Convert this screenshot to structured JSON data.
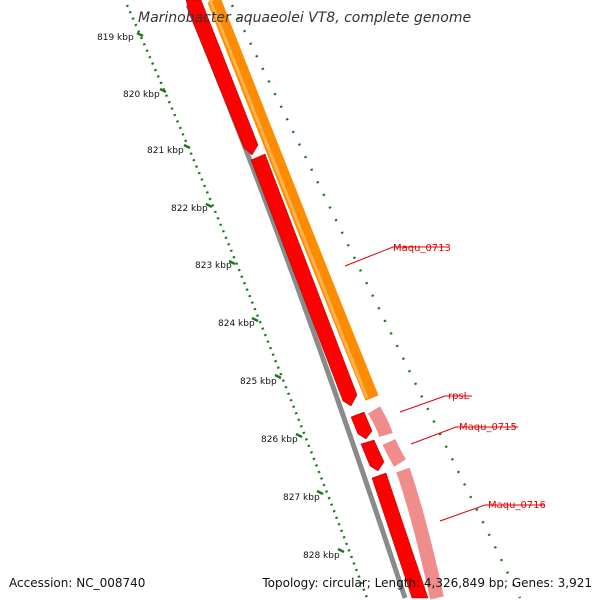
{
  "title": "Marinobacter aquaeolei VT8, complete genome",
  "accession": "Accession: NC_008740",
  "summary": "Topology: circular; Length: 4,326,849 bp; Genes: 3,921",
  "colors": {
    "backbone": "#8a8a8a",
    "cds_forward": "#ff0000",
    "cds_reverse": "#ff8c00",
    "rna_or_other": "#f08c8c",
    "ticks": "#1a7a1a",
    "label_lines": "#dd0000"
  },
  "ticks": [
    {
      "label": "819 kbp",
      "kbp": 819
    },
    {
      "label": "820 kbp",
      "kbp": 820
    },
    {
      "label": "821 kbp",
      "kbp": 821
    },
    {
      "label": "822 kbp",
      "kbp": 822
    },
    {
      "label": "823 kbp",
      "kbp": 823
    },
    {
      "label": "824 kbp",
      "kbp": 824
    },
    {
      "label": "825 kbp",
      "kbp": 825
    },
    {
      "label": "826 kbp",
      "kbp": 826
    },
    {
      "label": "827 kbp",
      "kbp": 827
    },
    {
      "label": "828 kbp",
      "kbp": 828
    }
  ],
  "genes": [
    {
      "name": "Maqu_0713"
    },
    {
      "name": "rpsL"
    },
    {
      "name": "Maqu_0715"
    },
    {
      "name": "Maqu_0716"
    }
  ]
}
